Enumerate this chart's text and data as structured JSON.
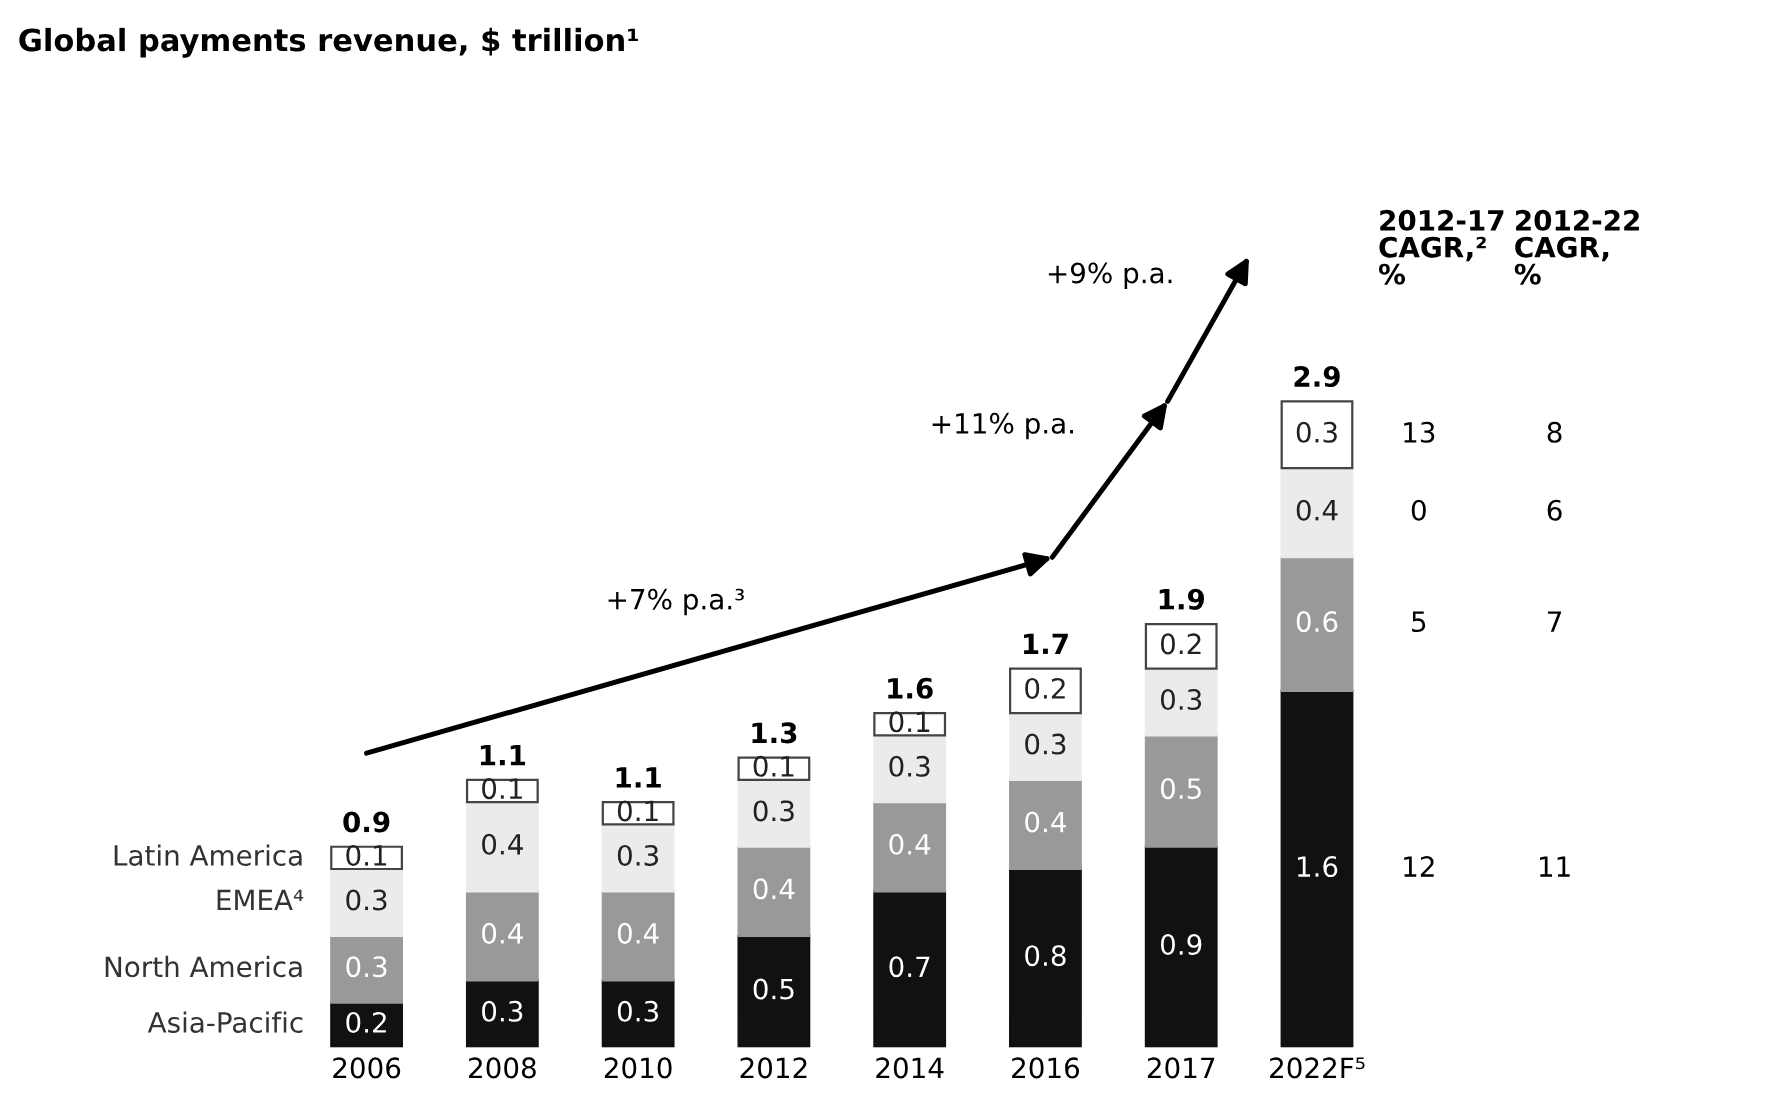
{
  "chart_data": {
    "type": "bar",
    "stacked": true,
    "data_labels": true,
    "legend": "left",
    "title": "Global payments revenue, $ trillion¹",
    "categories": [
      "2006",
      "2008",
      "2010",
      "2012",
      "2014",
      "2016",
      "2017",
      "2022F⁵"
    ],
    "series": [
      {
        "name": "Asia-Pacific",
        "color": "#111111",
        "values": [
          0.2,
          0.3,
          0.3,
          0.5,
          0.7,
          0.8,
          0.9,
          1.6
        ]
      },
      {
        "name": "North America",
        "color": "#999999",
        "values": [
          0.3,
          0.4,
          0.4,
          0.4,
          0.4,
          0.4,
          0.5,
          0.6
        ]
      },
      {
        "name": "EMEA⁴",
        "color": "#ebebeb",
        "values": [
          0.3,
          0.4,
          0.3,
          0.3,
          0.3,
          0.3,
          0.3,
          0.4
        ]
      },
      {
        "name": "Latin America",
        "color": "#ffffff",
        "values": [
          0.1,
          0.1,
          0.1,
          0.1,
          0.1,
          0.2,
          0.2,
          0.3
        ]
      }
    ],
    "totals": [
      "0.9",
      "1.1",
      "1.1",
      "1.3",
      "1.6",
      "1.7",
      "1.9",
      "2.9"
    ],
    "annotations": [
      "+7% p.a.³",
      "+11% p.a.",
      "+9% p.a.",
      "2012-17\nCAGR,²\n%",
      "2012-22\nCAGR,\n%",
      "12",
      "11",
      "5",
      "7",
      "0",
      "6",
      "13",
      "8"
    ]
  }
}
